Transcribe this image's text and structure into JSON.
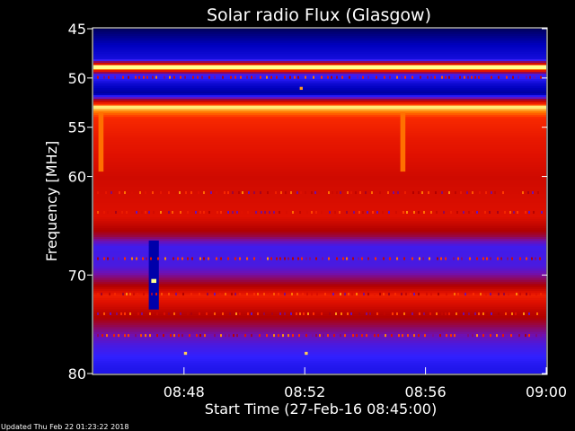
{
  "chart_data": {
    "type": "heatmap",
    "title": "Solar radio Flux (Glasgow)",
    "xlabel": "Start Time (27-Feb-16 08:45:00)",
    "ylabel": "Frequency [MHz]",
    "x_axis": {
      "unit": "time",
      "range": [
        "08:45",
        "09:00"
      ],
      "ticks": [
        "08:48",
        "08:52",
        "08:56",
        "09:00"
      ]
    },
    "y_axis": {
      "unit": "MHz",
      "range": [
        45,
        80
      ],
      "inverted": true,
      "ticks": [
        45,
        50,
        55,
        60,
        70,
        80
      ]
    },
    "colormap": [
      "#000050",
      "#0000c0",
      "#3020ff",
      "#7010b0",
      "#b00000",
      "#e01000",
      "#ff3000",
      "#ff8000",
      "#ffff90"
    ],
    "intensity_profile_by_frequency": [
      {
        "mhz": 45.0,
        "level": 0.02
      },
      {
        "mhz": 46.5,
        "level": 0.12
      },
      {
        "mhz": 48.0,
        "level": 0.18
      },
      {
        "mhz": 48.9,
        "level": 0.98
      },
      {
        "mhz": 49.5,
        "level": 0.3
      },
      {
        "mhz": 50.5,
        "level": 0.16
      },
      {
        "mhz": 51.5,
        "level": 0.08
      },
      {
        "mhz": 52.5,
        "level": 0.7
      },
      {
        "mhz": 53.0,
        "level": 0.95
      },
      {
        "mhz": 54.0,
        "level": 0.72
      },
      {
        "mhz": 56.0,
        "level": 0.66
      },
      {
        "mhz": 58.0,
        "level": 0.62
      },
      {
        "mhz": 60.0,
        "level": 0.58
      },
      {
        "mhz": 62.0,
        "level": 0.6
      },
      {
        "mhz": 64.0,
        "level": 0.62
      },
      {
        "mhz": 66.0,
        "level": 0.45
      },
      {
        "mhz": 67.0,
        "level": 0.28
      },
      {
        "mhz": 69.0,
        "level": 0.3
      },
      {
        "mhz": 71.0,
        "level": 0.5
      },
      {
        "mhz": 72.0,
        "level": 0.68
      },
      {
        "mhz": 73.5,
        "level": 0.55
      },
      {
        "mhz": 75.0,
        "level": 0.45
      },
      {
        "mhz": 77.0,
        "level": 0.3
      },
      {
        "mhz": 79.0,
        "level": 0.22
      },
      {
        "mhz": 80.0,
        "level": 0.2
      }
    ],
    "features": [
      {
        "time_start": "08:45:00",
        "time_end": "09:00:00",
        "freq_low": 48.7,
        "freq_high": 49.1,
        "level": 1.0
      },
      {
        "time_start": "08:45:00",
        "time_end": "09:00:00",
        "freq_low": 52.8,
        "freq_high": 53.1,
        "level": 0.98
      },
      {
        "time_start": "08:45:10",
        "time_end": "08:45:20",
        "freq_low": 53.5,
        "freq_high": 59.5,
        "level": 0.85
      },
      {
        "time_start": "08:55:10",
        "time_end": "08:55:20",
        "freq_low": 53.5,
        "freq_high": 59.5,
        "level": 0.85
      },
      {
        "time_start": "08:46:50",
        "time_end": "08:47:10",
        "freq_low": 66.5,
        "freq_high": 73.5,
        "level": 0.1
      },
      {
        "time_start": "08:46:55",
        "time_end": "08:47:05",
        "freq_low": 70.4,
        "freq_high": 70.8,
        "level": 1.0
      },
      {
        "time_start": "08:51:50",
        "time_end": "08:51:56",
        "freq_low": 50.9,
        "freq_high": 51.2,
        "level": 0.9
      },
      {
        "time_start": "08:48:00",
        "time_end": "08:48:06",
        "freq_low": 77.8,
        "freq_high": 78.1,
        "level": 0.95
      },
      {
        "time_start": "08:52:00",
        "time_end": "08:52:06",
        "freq_low": 77.8,
        "freq_high": 78.1,
        "level": 0.95
      }
    ]
  },
  "footer": {
    "updated": "Updated Thu Feb 22 01:23:22 2018"
  }
}
